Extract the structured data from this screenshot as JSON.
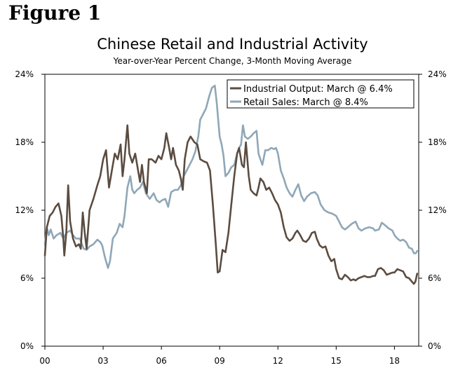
{
  "figure_label": "Figure 1",
  "chart_data": {
    "type": "line",
    "title": "Chinese Retail and Industrial Activity",
    "subtitle": "Year-over-Year Percent Change, 3-Month Moving Average",
    "ylim": [
      0,
      24
    ],
    "xlim": [
      2000,
      2019.25
    ],
    "y_ticks": [
      0,
      6,
      12,
      18,
      24
    ],
    "y_tick_labels": [
      "0%",
      "6%",
      "12%",
      "18%",
      "24%"
    ],
    "x_ticks": [
      2000,
      2003,
      2006,
      2009,
      2012,
      2015,
      2018
    ],
    "x_tick_labels": [
      "00",
      "03",
      "06",
      "09",
      "12",
      "15",
      "18"
    ],
    "grid": false,
    "legend_position": "top-right",
    "series": [
      {
        "name": "Industrial Output",
        "legend_label": "Industrial Output: March @ 6.4%",
        "color": "#5b4c41",
        "points": [
          [
            2000.0,
            8.0
          ],
          [
            2000.1,
            10.5
          ],
          [
            2000.25,
            11.5
          ],
          [
            2000.4,
            11.8
          ],
          [
            2000.55,
            12.3
          ],
          [
            2000.7,
            12.6
          ],
          [
            2000.85,
            11.5
          ],
          [
            2000.95,
            9.5
          ],
          [
            2001.0,
            8.0
          ],
          [
            2001.1,
            10.0
          ],
          [
            2001.2,
            14.2
          ],
          [
            2001.3,
            11.0
          ],
          [
            2001.45,
            9.5
          ],
          [
            2001.6,
            8.8
          ],
          [
            2001.75,
            9.0
          ],
          [
            2001.85,
            8.6
          ],
          [
            2001.95,
            11.8
          ],
          [
            2002.05,
            10.0
          ],
          [
            2002.15,
            8.6
          ],
          [
            2002.3,
            12.0
          ],
          [
            2002.5,
            13.0
          ],
          [
            2002.7,
            14.2
          ],
          [
            2002.85,
            15.0
          ],
          [
            2003.0,
            16.5
          ],
          [
            2003.15,
            17.3
          ],
          [
            2003.3,
            14.0
          ],
          [
            2003.45,
            15.5
          ],
          [
            2003.6,
            17.0
          ],
          [
            2003.75,
            16.5
          ],
          [
            2003.9,
            17.8
          ],
          [
            2004.0,
            15.0
          ],
          [
            2004.1,
            16.5
          ],
          [
            2004.25,
            19.5
          ],
          [
            2004.35,
            17.0
          ],
          [
            2004.5,
            16.2
          ],
          [
            2004.65,
            17.0
          ],
          [
            2004.8,
            15.5
          ],
          [
            2004.9,
            14.5
          ],
          [
            2005.0,
            16.0
          ],
          [
            2005.1,
            14.5
          ],
          [
            2005.25,
            13.5
          ],
          [
            2005.35,
            16.5
          ],
          [
            2005.5,
            16.5
          ],
          [
            2005.7,
            16.2
          ],
          [
            2005.85,
            16.8
          ],
          [
            2006.0,
            16.5
          ],
          [
            2006.15,
            17.5
          ],
          [
            2006.25,
            18.8
          ],
          [
            2006.4,
            17.5
          ],
          [
            2006.5,
            16.5
          ],
          [
            2006.6,
            17.5
          ],
          [
            2006.75,
            16.0
          ],
          [
            2006.9,
            15.5
          ],
          [
            2007.0,
            14.8
          ],
          [
            2007.1,
            13.8
          ],
          [
            2007.2,
            16.5
          ],
          [
            2007.35,
            18.0
          ],
          [
            2007.5,
            18.5
          ],
          [
            2007.7,
            18.0
          ],
          [
            2007.85,
            17.8
          ],
          [
            2008.0,
            16.5
          ],
          [
            2008.2,
            16.3
          ],
          [
            2008.35,
            16.2
          ],
          [
            2008.5,
            15.5
          ],
          [
            2008.65,
            12.5
          ],
          [
            2008.8,
            9.0
          ],
          [
            2008.9,
            6.5
          ],
          [
            2009.0,
            6.6
          ],
          [
            2009.15,
            8.5
          ],
          [
            2009.3,
            8.3
          ],
          [
            2009.45,
            10.0
          ],
          [
            2009.6,
            12.5
          ],
          [
            2009.75,
            15.0
          ],
          [
            2009.9,
            17.0
          ],
          [
            2010.0,
            17.5
          ],
          [
            2010.15,
            16.0
          ],
          [
            2010.25,
            15.8
          ],
          [
            2010.35,
            18.0
          ],
          [
            2010.5,
            15.0
          ],
          [
            2010.6,
            13.8
          ],
          [
            2010.75,
            13.5
          ],
          [
            2010.9,
            13.3
          ],
          [
            2011.0,
            14.0
          ],
          [
            2011.1,
            14.8
          ],
          [
            2011.25,
            14.5
          ],
          [
            2011.4,
            13.8
          ],
          [
            2011.55,
            14.0
          ],
          [
            2011.7,
            13.5
          ],
          [
            2011.85,
            12.9
          ],
          [
            2012.0,
            12.5
          ],
          [
            2012.15,
            11.8
          ],
          [
            2012.3,
            10.5
          ],
          [
            2012.45,
            9.6
          ],
          [
            2012.6,
            9.3
          ],
          [
            2012.75,
            9.5
          ],
          [
            2012.9,
            10.0
          ],
          [
            2013.0,
            10.2
          ],
          [
            2013.15,
            9.8
          ],
          [
            2013.3,
            9.3
          ],
          [
            2013.45,
            9.2
          ],
          [
            2013.6,
            9.5
          ],
          [
            2013.75,
            10.0
          ],
          [
            2013.9,
            10.1
          ],
          [
            2014.0,
            9.5
          ],
          [
            2014.15,
            8.9
          ],
          [
            2014.3,
            8.7
          ],
          [
            2014.45,
            8.8
          ],
          [
            2014.6,
            8.0
          ],
          [
            2014.75,
            7.5
          ],
          [
            2014.9,
            7.7
          ],
          [
            2015.0,
            6.8
          ],
          [
            2015.15,
            6.0
          ],
          [
            2015.3,
            5.9
          ],
          [
            2015.45,
            6.3
          ],
          [
            2015.6,
            6.1
          ],
          [
            2015.75,
            5.8
          ],
          [
            2015.9,
            5.9
          ],
          [
            2016.0,
            5.8
          ],
          [
            2016.15,
            6.0
          ],
          [
            2016.3,
            6.1
          ],
          [
            2016.45,
            6.2
          ],
          [
            2016.6,
            6.1
          ],
          [
            2016.75,
            6.1
          ],
          [
            2016.9,
            6.2
          ],
          [
            2017.0,
            6.2
          ],
          [
            2017.15,
            6.8
          ],
          [
            2017.3,
            6.9
          ],
          [
            2017.45,
            6.7
          ],
          [
            2017.6,
            6.3
          ],
          [
            2017.75,
            6.4
          ],
          [
            2017.9,
            6.5
          ],
          [
            2018.0,
            6.5
          ],
          [
            2018.15,
            6.8
          ],
          [
            2018.3,
            6.7
          ],
          [
            2018.45,
            6.6
          ],
          [
            2018.6,
            6.1
          ],
          [
            2018.75,
            6.0
          ],
          [
            2018.9,
            5.7
          ],
          [
            2019.0,
            5.5
          ],
          [
            2019.08,
            5.7
          ],
          [
            2019.17,
            6.4
          ]
        ]
      },
      {
        "name": "Retail Sales",
        "legend_label": "Retail Sales: March @ 8.4%",
        "color": "#8fa7b7",
        "points": [
          [
            2000.0,
            9.0
          ],
          [
            2000.1,
            10.5
          ],
          [
            2000.2,
            9.8
          ],
          [
            2000.3,
            10.3
          ],
          [
            2000.45,
            9.5
          ],
          [
            2000.6,
            9.8
          ],
          [
            2000.8,
            10.0
          ],
          [
            2000.95,
            9.5
          ],
          [
            2001.1,
            10.0
          ],
          [
            2001.3,
            10.2
          ],
          [
            2001.45,
            9.8
          ],
          [
            2001.6,
            9.5
          ],
          [
            2001.8,
            9.5
          ],
          [
            2002.0,
            8.6
          ],
          [
            2002.15,
            8.5
          ],
          [
            2002.3,
            8.8
          ],
          [
            2002.5,
            9.0
          ],
          [
            2002.7,
            9.4
          ],
          [
            2002.85,
            9.2
          ],
          [
            2002.95,
            8.9
          ],
          [
            2003.1,
            7.8
          ],
          [
            2003.25,
            6.9
          ],
          [
            2003.35,
            7.5
          ],
          [
            2003.5,
            9.5
          ],
          [
            2003.7,
            10.0
          ],
          [
            2003.85,
            10.8
          ],
          [
            2004.0,
            10.5
          ],
          [
            2004.1,
            11.5
          ],
          [
            2004.25,
            14.0
          ],
          [
            2004.4,
            15.0
          ],
          [
            2004.5,
            13.8
          ],
          [
            2004.6,
            13.5
          ],
          [
            2004.75,
            13.8
          ],
          [
            2004.9,
            14.0
          ],
          [
            2005.05,
            14.5
          ],
          [
            2005.2,
            13.5
          ],
          [
            2005.4,
            13.0
          ],
          [
            2005.6,
            13.5
          ],
          [
            2005.75,
            12.9
          ],
          [
            2005.9,
            12.7
          ],
          [
            2006.05,
            12.9
          ],
          [
            2006.2,
            13.0
          ],
          [
            2006.35,
            12.3
          ],
          [
            2006.5,
            13.6
          ],
          [
            2006.7,
            13.8
          ],
          [
            2006.85,
            13.8
          ],
          [
            2007.0,
            14.2
          ],
          [
            2007.15,
            15.0
          ],
          [
            2007.3,
            15.5
          ],
          [
            2007.45,
            16.0
          ],
          [
            2007.6,
            16.5
          ],
          [
            2007.75,
            17.2
          ],
          [
            2007.9,
            18.5
          ],
          [
            2008.0,
            20.0
          ],
          [
            2008.15,
            20.5
          ],
          [
            2008.3,
            21.0
          ],
          [
            2008.45,
            22.0
          ],
          [
            2008.6,
            22.8
          ],
          [
            2008.75,
            23.0
          ],
          [
            2008.85,
            21.5
          ],
          [
            2009.0,
            18.5
          ],
          [
            2009.1,
            17.8
          ],
          [
            2009.2,
            16.8
          ],
          [
            2009.3,
            15.0
          ],
          [
            2009.45,
            15.3
          ],
          [
            2009.6,
            15.8
          ],
          [
            2009.75,
            16.0
          ],
          [
            2009.9,
            17.0
          ],
          [
            2010.0,
            17.5
          ],
          [
            2010.1,
            17.8
          ],
          [
            2010.2,
            19.5
          ],
          [
            2010.3,
            18.5
          ],
          [
            2010.45,
            18.3
          ],
          [
            2010.6,
            18.5
          ],
          [
            2010.75,
            18.8
          ],
          [
            2010.9,
            19.0
          ],
          [
            2011.0,
            17.0
          ],
          [
            2011.1,
            16.5
          ],
          [
            2011.2,
            16.0
          ],
          [
            2011.35,
            17.3
          ],
          [
            2011.5,
            17.3
          ],
          [
            2011.65,
            17.5
          ],
          [
            2011.8,
            17.4
          ],
          [
            2011.9,
            17.5
          ],
          [
            2012.0,
            17.0
          ],
          [
            2012.15,
            15.5
          ],
          [
            2012.3,
            14.8
          ],
          [
            2012.45,
            14.0
          ],
          [
            2012.6,
            13.5
          ],
          [
            2012.75,
            13.2
          ],
          [
            2012.9,
            13.8
          ],
          [
            2013.05,
            14.3
          ],
          [
            2013.2,
            13.3
          ],
          [
            2013.35,
            12.8
          ],
          [
            2013.5,
            13.2
          ],
          [
            2013.7,
            13.5
          ],
          [
            2013.9,
            13.6
          ],
          [
            2014.05,
            13.3
          ],
          [
            2014.2,
            12.5
          ],
          [
            2014.4,
            12.0
          ],
          [
            2014.6,
            11.8
          ],
          [
            2014.8,
            11.7
          ],
          [
            2015.0,
            11.5
          ],
          [
            2015.15,
            11.0
          ],
          [
            2015.3,
            10.5
          ],
          [
            2015.45,
            10.3
          ],
          [
            2015.6,
            10.5
          ],
          [
            2015.8,
            10.8
          ],
          [
            2016.0,
            11.0
          ],
          [
            2016.15,
            10.4
          ],
          [
            2016.3,
            10.2
          ],
          [
            2016.5,
            10.4
          ],
          [
            2016.7,
            10.5
          ],
          [
            2016.9,
            10.4
          ],
          [
            2017.0,
            10.2
          ],
          [
            2017.2,
            10.3
          ],
          [
            2017.35,
            10.9
          ],
          [
            2017.5,
            10.7
          ],
          [
            2017.7,
            10.4
          ],
          [
            2017.9,
            10.2
          ],
          [
            2018.0,
            9.8
          ],
          [
            2018.15,
            9.5
          ],
          [
            2018.3,
            9.3
          ],
          [
            2018.45,
            9.4
          ],
          [
            2018.6,
            9.2
          ],
          [
            2018.75,
            8.7
          ],
          [
            2018.9,
            8.6
          ],
          [
            2019.0,
            8.2
          ],
          [
            2019.1,
            8.2
          ],
          [
            2019.17,
            8.4
          ]
        ]
      }
    ]
  }
}
